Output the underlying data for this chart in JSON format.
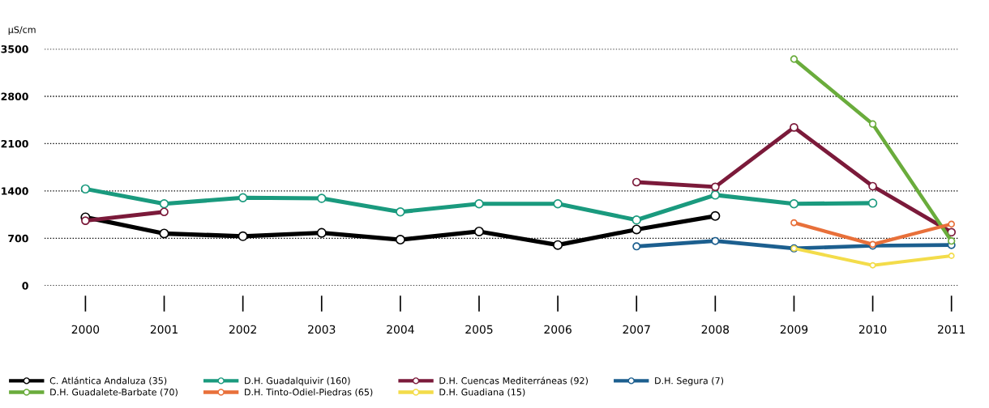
{
  "chart_data": {
    "type": "line",
    "ylabel": "µS/cm",
    "categories": [
      "2000",
      "2001",
      "2002",
      "2003",
      "2004",
      "2005",
      "2006",
      "2007",
      "2008",
      "2009",
      "2010",
      "2011"
    ],
    "ylim": [
      0,
      3500
    ],
    "yticks": [
      0,
      700,
      1400,
      2100,
      2800,
      3500
    ],
    "grid": "y",
    "legend": "bottom",
    "marker": "circle",
    "line_style": "solid",
    "series": [
      {
        "name": "C. Atlántica Andaluza (35)",
        "color": "#000000",
        "values": [
          1010,
          770,
          730,
          780,
          680,
          800,
          600,
          830,
          1030,
          null,
          null,
          null
        ]
      },
      {
        "name": "D.H. Guadalquivir (160)",
        "color": "#1a9a7e",
        "values": [
          1430,
          1210,
          1300,
          1290,
          1090,
          1210,
          1210,
          970,
          1340,
          1210,
          1220,
          null
        ]
      },
      {
        "name": "D.H. Cuencas Mediterráneas (92)",
        "color": "#7b1a3a",
        "values": [
          960,
          1090,
          null,
          null,
          null,
          null,
          null,
          1530,
          1460,
          2340,
          1470,
          790
        ]
      },
      {
        "name": "D.H. Segura (7)",
        "color": "#1c5f8f",
        "values": [
          null,
          null,
          null,
          null,
          null,
          null,
          null,
          580,
          660,
          550,
          590,
          600
        ]
      },
      {
        "name": "D.H. Guadalete-Barbate (70)",
        "color": "#6aac3c",
        "values": [
          null,
          null,
          null,
          null,
          null,
          null,
          null,
          null,
          null,
          3350,
          2390,
          660
        ]
      },
      {
        "name": "D.H. Tinto-Odiel-Piedras (65)",
        "color": "#e8703a",
        "values": [
          null,
          null,
          null,
          null,
          null,
          null,
          null,
          null,
          null,
          930,
          610,
          910
        ]
      },
      {
        "name": "D.H. Guadiana (15)",
        "color": "#f3dc4a",
        "values": [
          null,
          null,
          null,
          null,
          null,
          null,
          null,
          null,
          null,
          550,
          300,
          440
        ]
      }
    ]
  }
}
